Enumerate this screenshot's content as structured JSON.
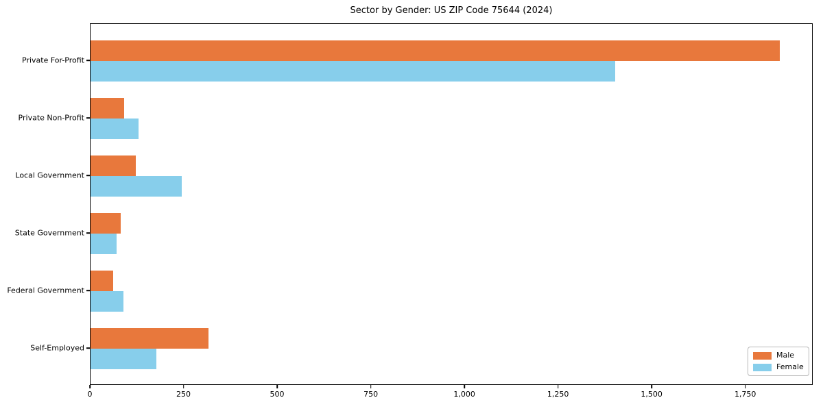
{
  "title": "Sector by Gender: US ZIP Code 75644 (2024)",
  "chart_data": {
    "type": "bar",
    "orientation": "horizontal",
    "title": "Sector by Gender: US ZIP Code 75644 (2024)",
    "xlabel": "",
    "ylabel": "",
    "categories": [
      "Private For-Profit",
      "Private Non-Profit",
      "Local Government",
      "State Government",
      "Federal Government",
      "Self-Employed"
    ],
    "series": [
      {
        "name": "Male",
        "color": "#e8783c",
        "values": [
          1840,
          90,
          120,
          80,
          60,
          315
        ]
      },
      {
        "name": "Female",
        "color": "#87ceeb",
        "values": [
          1400,
          128,
          244,
          70,
          87,
          175
        ]
      }
    ],
    "xlim": [
      0,
      1930
    ],
    "xticks": [
      0,
      250,
      500,
      750,
      1000,
      1250,
      1500,
      1750
    ],
    "xtick_labels": [
      "0",
      "250",
      "500",
      "750",
      "1,000",
      "1,250",
      "1,500",
      "1,750"
    ],
    "grid": false,
    "legend_position": "lower right",
    "axis_color": "#000000",
    "background_color": "#ffffff"
  }
}
